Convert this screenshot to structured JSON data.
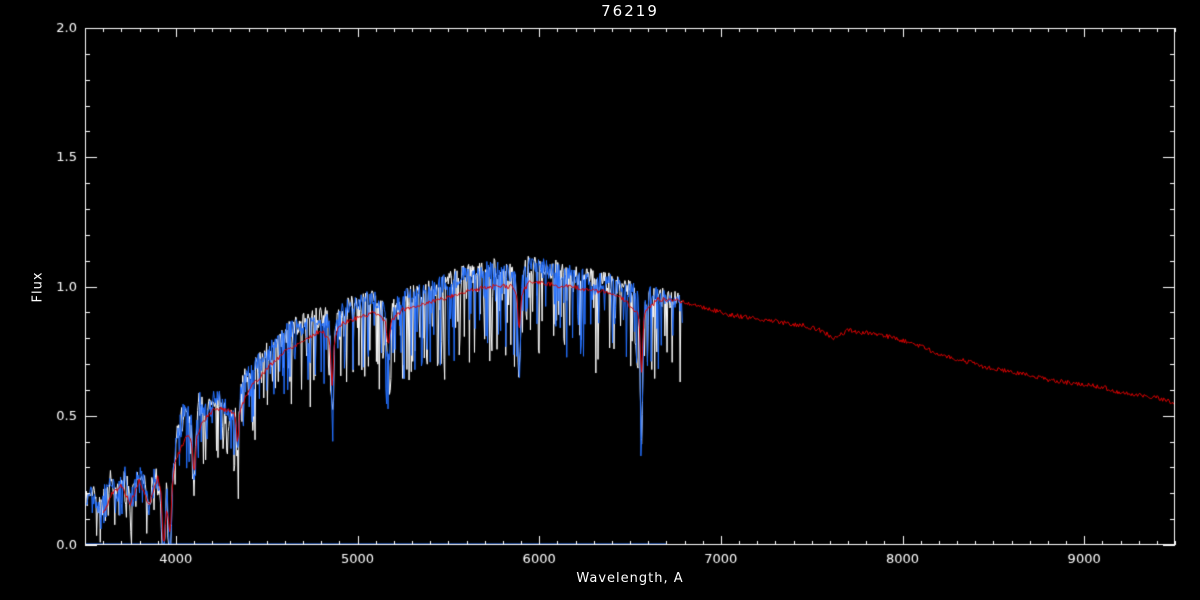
{
  "chart_data": {
    "type": "line",
    "title": "76219",
    "xlabel": "Wavelength, A",
    "ylabel": "Flux",
    "xlim": [
      3500,
      9500
    ],
    "ylim": [
      0.0,
      2.0
    ],
    "xticks": [
      4000,
      5000,
      6000,
      7000,
      8000,
      9000
    ],
    "xtick_labels": [
      "4000",
      "5000",
      "6000",
      "7000",
      "8000",
      "9000"
    ],
    "yticks": [
      0.0,
      0.5,
      1.0,
      1.5,
      2.0
    ],
    "ytick_labels": [
      "0.0",
      "0.5",
      "1.0",
      "1.5",
      "2.0"
    ],
    "x_minor_step": 100,
    "y_minor_step": 0.1,
    "grid": false,
    "legend": "none",
    "background": "#000000",
    "frame_color": "#ffffff",
    "series": [
      {
        "name": "sky-baseline",
        "color": "#2470ff",
        "seed": 3,
        "step": 200,
        "noise": 0,
        "spike_prob": 0,
        "spike_max": 0,
        "range": [
          3500,
          6800
        ],
        "continuum": "baseline",
        "lines": "none"
      },
      {
        "name": "observed-spectrum-white",
        "color": "#ffffff",
        "seed": 11,
        "step": 4,
        "noise": 0.04,
        "spike_prob": 0.3,
        "spike_max": 0.34,
        "range": [
          3500,
          6790
        ],
        "continuum": "observed",
        "lines": "observed"
      },
      {
        "name": "observed-spectrum-blue",
        "color": "#2470ff",
        "seed": 27,
        "step": 4,
        "noise": 0.034,
        "spike_prob": 0.26,
        "spike_max": 0.3,
        "range": [
          3500,
          6790
        ],
        "continuum": "observed",
        "lines": "observed"
      },
      {
        "name": "template-spectrum-red",
        "color": "#dd0000",
        "seed": 5,
        "step": 6,
        "noise": 0.009,
        "spike_prob": 0,
        "spike_max": 0,
        "range": [
          3600,
          9500
        ],
        "continuum": "template",
        "lines": "template"
      }
    ],
    "continua": {
      "baseline": [
        [
          3500,
          0.004
        ],
        [
          6800,
          0.004
        ]
      ],
      "observed": [
        [
          3500,
          0.17
        ],
        [
          3540,
          0.22
        ],
        [
          3570,
          0.14
        ],
        [
          3600,
          0.2
        ],
        [
          3640,
          0.26
        ],
        [
          3680,
          0.2
        ],
        [
          3720,
          0.28
        ],
        [
          3750,
          0.16
        ],
        [
          3780,
          0.26
        ],
        [
          3820,
          0.28
        ],
        [
          3850,
          0.14
        ],
        [
          3880,
          0.28
        ],
        [
          3910,
          0.22
        ],
        [
          3933,
          0.18
        ],
        [
          3950,
          0.25
        ],
        [
          3968,
          0.18
        ],
        [
          4000,
          0.4
        ],
        [
          4040,
          0.52
        ],
        [
          4080,
          0.5
        ],
        [
          4101,
          0.44
        ],
        [
          4130,
          0.56
        ],
        [
          4170,
          0.52
        ],
        [
          4220,
          0.58
        ],
        [
          4260,
          0.55
        ],
        [
          4300,
          0.5
        ],
        [
          4340,
          0.55
        ],
        [
          4380,
          0.65
        ],
        [
          4420,
          0.68
        ],
        [
          4470,
          0.72
        ],
        [
          4520,
          0.76
        ],
        [
          4570,
          0.8
        ],
        [
          4620,
          0.83
        ],
        [
          4670,
          0.85
        ],
        [
          4720,
          0.86
        ],
        [
          4780,
          0.88
        ],
        [
          4830,
          0.88
        ],
        [
          4861,
          0.8
        ],
        [
          4900,
          0.9
        ],
        [
          4950,
          0.92
        ],
        [
          5000,
          0.93
        ],
        [
          5050,
          0.95
        ],
        [
          5100,
          0.95
        ],
        [
          5170,
          0.88
        ],
        [
          5220,
          0.94
        ],
        [
          5270,
          0.96
        ],
        [
          5320,
          0.97
        ],
        [
          5380,
          0.98
        ],
        [
          5440,
          1.0
        ],
        [
          5500,
          1.02
        ],
        [
          5560,
          1.04
        ],
        [
          5620,
          1.05
        ],
        [
          5680,
          1.06
        ],
        [
          5740,
          1.07
        ],
        [
          5800,
          1.06
        ],
        [
          5850,
          1.05
        ],
        [
          5890,
          1.0
        ],
        [
          5930,
          1.08
        ],
        [
          5990,
          1.08
        ],
        [
          6050,
          1.07
        ],
        [
          6110,
          1.06
        ],
        [
          6170,
          1.05
        ],
        [
          6230,
          1.04
        ],
        [
          6290,
          1.03
        ],
        [
          6350,
          1.02
        ],
        [
          6410,
          1.01
        ],
        [
          6470,
          1.0
        ],
        [
          6530,
          0.98
        ],
        [
          6563,
          0.9
        ],
        [
          6610,
          0.97
        ],
        [
          6660,
          0.96
        ],
        [
          6720,
          0.95
        ],
        [
          6790,
          0.93
        ]
      ],
      "template": [
        [
          3600,
          0.12
        ],
        [
          3650,
          0.2
        ],
        [
          3700,
          0.23
        ],
        [
          3750,
          0.16
        ],
        [
          3800,
          0.25
        ],
        [
          3850,
          0.15
        ],
        [
          3900,
          0.26
        ],
        [
          3950,
          0.14
        ],
        [
          4000,
          0.33
        ],
        [
          4060,
          0.42
        ],
        [
          4101,
          0.4
        ],
        [
          4150,
          0.48
        ],
        [
          4220,
          0.53
        ],
        [
          4300,
          0.52
        ],
        [
          4340,
          0.5
        ],
        [
          4400,
          0.6
        ],
        [
          4500,
          0.68
        ],
        [
          4600,
          0.75
        ],
        [
          4700,
          0.79
        ],
        [
          4800,
          0.83
        ],
        [
          4861,
          0.78
        ],
        [
          4900,
          0.85
        ],
        [
          5000,
          0.88
        ],
        [
          5100,
          0.9
        ],
        [
          5170,
          0.86
        ],
        [
          5250,
          0.91
        ],
        [
          5350,
          0.93
        ],
        [
          5450,
          0.95
        ],
        [
          5550,
          0.97
        ],
        [
          5650,
          0.99
        ],
        [
          5750,
          1.0
        ],
        [
          5850,
          1.0
        ],
        [
          5890,
          0.96
        ],
        [
          5950,
          1.02
        ],
        [
          6050,
          1.01
        ],
        [
          6150,
          1.0
        ],
        [
          6250,
          0.99
        ],
        [
          6350,
          0.98
        ],
        [
          6450,
          0.96
        ],
        [
          6563,
          0.88
        ],
        [
          6650,
          0.95
        ],
        [
          6750,
          0.95
        ],
        [
          6850,
          0.93
        ],
        [
          6950,
          0.91
        ],
        [
          7050,
          0.89
        ],
        [
          7150,
          0.88
        ],
        [
          7250,
          0.87
        ],
        [
          7350,
          0.86
        ],
        [
          7450,
          0.85
        ],
        [
          7550,
          0.83
        ],
        [
          7620,
          0.8
        ],
        [
          7700,
          0.83
        ],
        [
          7800,
          0.82
        ],
        [
          7900,
          0.81
        ],
        [
          8000,
          0.79
        ],
        [
          8100,
          0.77
        ],
        [
          8200,
          0.74
        ],
        [
          8300,
          0.72
        ],
        [
          8400,
          0.7
        ],
        [
          8500,
          0.68
        ],
        [
          8600,
          0.67
        ],
        [
          8700,
          0.66
        ],
        [
          8800,
          0.64
        ],
        [
          8900,
          0.63
        ],
        [
          9000,
          0.62
        ],
        [
          9100,
          0.61
        ],
        [
          9200,
          0.59
        ],
        [
          9300,
          0.58
        ],
        [
          9400,
          0.57
        ],
        [
          9500,
          0.55
        ]
      ]
    },
    "linesets": {
      "none": [],
      "observed": [
        {
          "x": 3933,
          "w": 10,
          "d": 0.3
        },
        {
          "x": 3968,
          "w": 10,
          "d": 0.28
        },
        {
          "x": 4101,
          "w": 9,
          "d": 0.22
        },
        {
          "x": 4340,
          "w": 9,
          "d": 0.2
        },
        {
          "x": 4861,
          "w": 9,
          "d": 0.28
        },
        {
          "x": 5170,
          "w": 12,
          "d": 0.18
        },
        {
          "x": 5890,
          "w": 10,
          "d": 0.35
        },
        {
          "x": 6563,
          "w": 9,
          "d": 0.5
        }
      ],
      "template": [
        {
          "x": 3933,
          "w": 10,
          "d": 0.18
        },
        {
          "x": 3968,
          "w": 10,
          "d": 0.16
        },
        {
          "x": 4101,
          "w": 9,
          "d": 0.12
        },
        {
          "x": 4340,
          "w": 9,
          "d": 0.1
        },
        {
          "x": 4861,
          "w": 9,
          "d": 0.16
        },
        {
          "x": 5170,
          "w": 12,
          "d": 0.08
        },
        {
          "x": 5890,
          "w": 10,
          "d": 0.12
        },
        {
          "x": 6563,
          "w": 9,
          "d": 0.22
        }
      ]
    }
  }
}
